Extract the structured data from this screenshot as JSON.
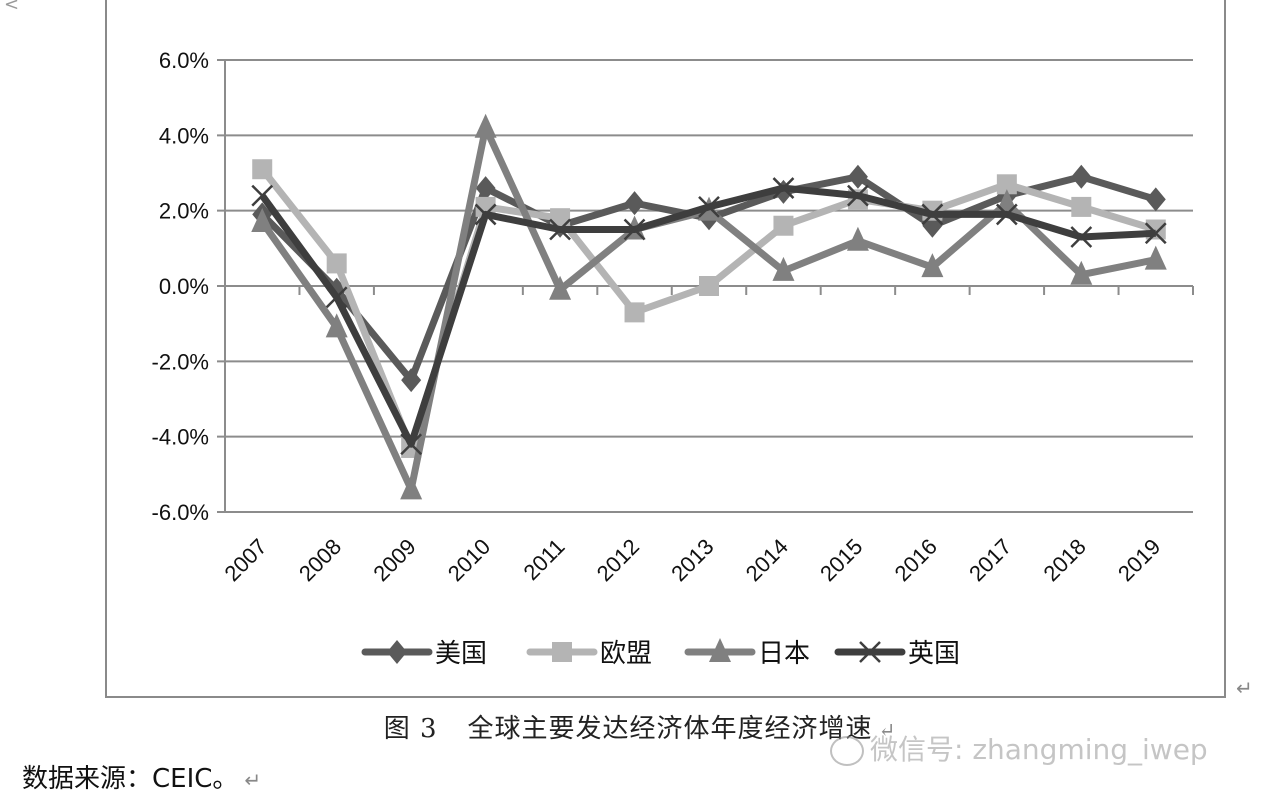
{
  "chart_data": {
    "type": "line",
    "title": "全球主要发达经济体年度经济增速",
    "xlabel": "",
    "ylabel": "",
    "categories": [
      "2007",
      "2008",
      "2009",
      "2010",
      "2011",
      "2012",
      "2013",
      "2014",
      "2015",
      "2016",
      "2017",
      "2018",
      "2019"
    ],
    "ylim": [
      -6.0,
      6.0
    ],
    "yticks": [
      "6.0%",
      "4.0%",
      "2.0%",
      "0.0%",
      "-2.0%",
      "-4.0%",
      "-6.0%"
    ],
    "grid": true,
    "legend_position": "bottom",
    "series": [
      {
        "name": "美国",
        "marker": "diamond",
        "color": "#5a5a5a",
        "values": [
          1.9,
          -0.1,
          -2.5,
          2.6,
          1.6,
          2.2,
          1.8,
          2.5,
          2.9,
          1.6,
          2.4,
          2.9,
          2.3
        ]
      },
      {
        "name": "欧盟",
        "marker": "square",
        "color": "#b4b4b4",
        "values": [
          3.1,
          0.6,
          -4.3,
          2.1,
          1.8,
          -0.7,
          0.0,
          1.6,
          2.3,
          2.0,
          2.7,
          2.1,
          1.5
        ]
      },
      {
        "name": "日本",
        "marker": "triangle",
        "color": "#808080",
        "values": [
          1.7,
          -1.1,
          -5.4,
          4.2,
          -0.1,
          1.5,
          2.0,
          0.4,
          1.2,
          0.5,
          2.2,
          0.3,
          0.7
        ]
      },
      {
        "name": "英国",
        "marker": "x",
        "color": "#3e3e3e",
        "values": [
          2.4,
          -0.3,
          -4.2,
          1.9,
          1.5,
          1.5,
          2.1,
          2.6,
          2.4,
          1.9,
          1.9,
          1.3,
          1.4
        ]
      }
    ]
  },
  "caption": {
    "figure_number": "图 3",
    "title": "全球主要发达经济体年度经济增速",
    "return_mark": "↵"
  },
  "source": {
    "text": "数据来源：CEIC。",
    "return_mark": "↵"
  },
  "watermark": {
    "text": "微信号: zhangming_iwep"
  },
  "frame_return_mark": "↵"
}
